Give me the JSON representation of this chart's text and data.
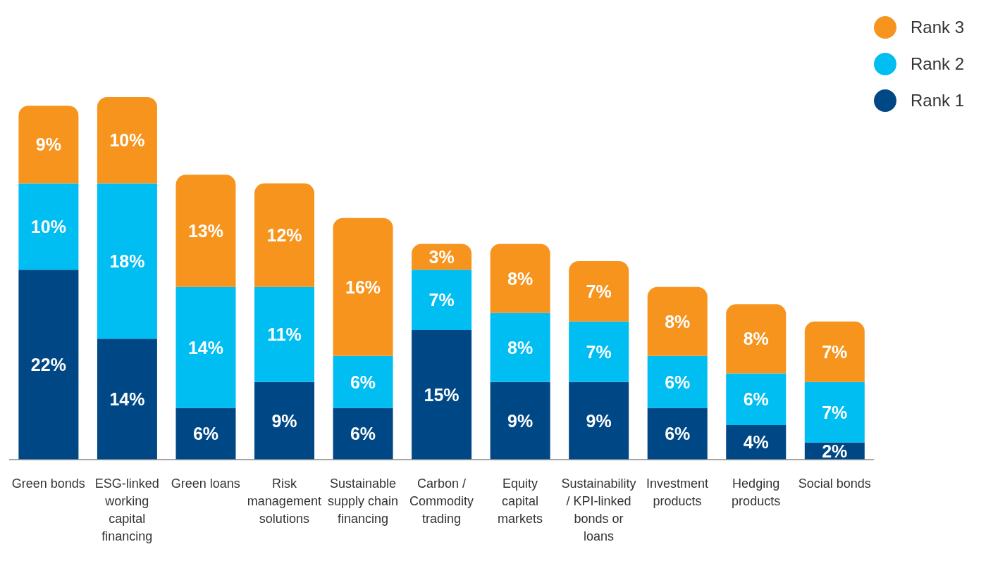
{
  "chart_data": {
    "type": "bar",
    "stacked": true,
    "legend": "top right",
    "categories": [
      "Green bonds",
      "ESG-linked working capital financing",
      "Green loans",
      "Risk management solutions",
      "Sustainable supply chain financing",
      "Carbon / Commodity trading",
      "Equity capital markets",
      "Sustainability / KPI-linked bonds or loans",
      "Investment products",
      "Hedging products",
      "Social bonds"
    ],
    "series": [
      {
        "name": "Rank 1",
        "color": "#004785",
        "values": [
          22,
          14,
          6,
          9,
          6,
          15,
          9,
          9,
          6,
          4,
          2
        ],
        "value_labels": [
          "22%",
          "14%",
          "6%",
          "9%",
          "6%",
          "15%",
          "9%",
          "9%",
          "6%",
          "4%",
          "2%"
        ]
      },
      {
        "name": "Rank 2",
        "color": "#00bdf2",
        "values": [
          10,
          18,
          14,
          11,
          6,
          7,
          8,
          7,
          6,
          6,
          7
        ],
        "value_labels": [
          "10%",
          "18%",
          "14%",
          "11%",
          "6%",
          "7%",
          "8%",
          "7%",
          "6%",
          "6%",
          "7%"
        ]
      },
      {
        "name": "Rank 3",
        "color": "#f7941d",
        "values": [
          9,
          10,
          13,
          12,
          16,
          3,
          8,
          7,
          8,
          8,
          7
        ],
        "value_labels": [
          "9%",
          "10%",
          "13%",
          "12%",
          "16%",
          "3%",
          "8%",
          "7%",
          "8%",
          "8%",
          "7%"
        ]
      }
    ]
  }
}
